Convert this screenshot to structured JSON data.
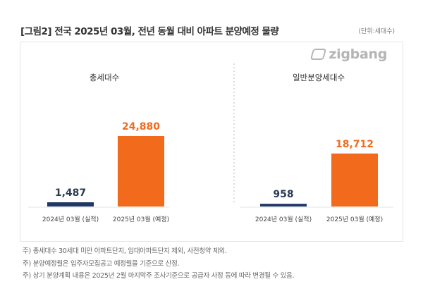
{
  "title": "[그림2] 전국 2025년 03월, 전년 동월 대비 아파트 분양예정 물량",
  "unit": "(단위:세대수)",
  "logo": "zigbang",
  "colors": {
    "actual": "#1f3864",
    "planned": "#f26b1d"
  },
  "chart_data": [
    {
      "type": "bar",
      "title": "총세대수",
      "categories": [
        "2024년 03월 (실적)",
        "2025년 03월 (예정)"
      ],
      "values": [
        1487,
        24880
      ],
      "value_labels": [
        "1,487",
        "24,880"
      ]
    },
    {
      "type": "bar",
      "title": "일반분양세대수",
      "categories": [
        "2024년 03월 (실적)",
        "2025년 03월 (예정)"
      ],
      "values": [
        958,
        18712
      ],
      "value_labels": [
        "958",
        "18,712"
      ]
    }
  ],
  "notes": [
    "주) 총세대수 30세대 미만 아파트단지, 임대아파트단지 제외, 사전청약 제외.",
    "주) 분양예정월은 입주자모집공고 예정월을 기준으로 산정.",
    "주) 상기 분양계획 내용은 2025년 2월  마지막주  조사기준으로 공급자 사정 등에 따라 변경될 수 있음."
  ]
}
